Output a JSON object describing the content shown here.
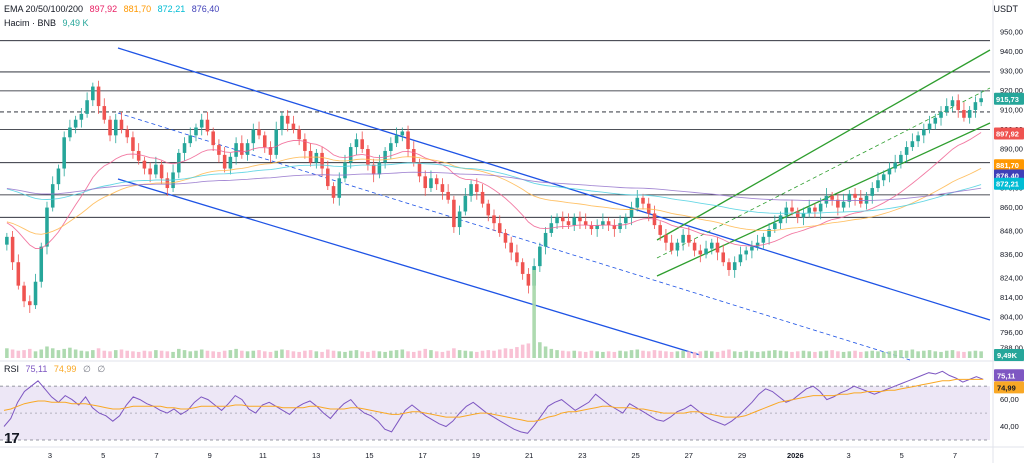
{
  "header": {
    "currency": "USDT"
  },
  "legend": {
    "ema_label": "EMA 20/50/100/200",
    "ema20": "897,92",
    "ema50": "881,70",
    "ema100": "872,21",
    "ema200": "876,40",
    "volume_label": "Hacim · BNB",
    "volume_value": "9,49 K",
    "rsi_label": "RSI",
    "rsi_value": "75,11",
    "rsi_ma_value": "74,99",
    "rsi_extra_1": "∅",
    "rsi_extra_2": "∅"
  },
  "colors": {
    "up": "#26a69a",
    "down": "#ef5350",
    "channel_blue": "#1e53e5",
    "channel_green": "#2e9e2e",
    "rsi": "#7e57c2",
    "rsi_ma": "#f9a825",
    "rsi_band": "#ede7f6"
  },
  "chart_data": [
    {
      "type": "candlestick",
      "title": "",
      "ylim": [
        786,
        952
      ],
      "y_ticks": [
        950,
        940,
        930,
        920,
        910,
        900,
        890,
        880,
        870,
        860,
        848,
        836,
        824,
        814,
        804,
        796,
        788
      ],
      "x_tick_labels": [
        "3",
        "5",
        "7",
        "9",
        "11",
        "13",
        "15",
        "17",
        "19",
        "21",
        "23",
        "25",
        "27",
        "29",
        "2026",
        "3",
        "5",
        "7"
      ],
      "price_badges": [
        {
          "label": "915,73",
          "value": 915.73,
          "color": "#26a69a"
        },
        {
          "label": "897,92",
          "value": 897.92,
          "color": "#ef5350"
        },
        {
          "label": "881,70",
          "value": 881.7,
          "color": "#ff9800"
        },
        {
          "label": "876,40",
          "value": 876.4,
          "color": "#3f3fb8"
        },
        {
          "label": "872,21",
          "value": 872.21,
          "color": "#00bcd4"
        }
      ],
      "horizontal_levels": [
        945.5,
        929.5,
        919.8,
        900,
        883,
        866.5,
        855
      ],
      "dashed_level": 909,
      "ohlc_close": [
        845,
        832,
        820,
        812,
        810,
        822,
        840,
        860,
        872,
        880,
        896,
        901,
        905,
        908,
        915,
        922,
        912,
        905,
        897,
        905,
        900,
        896,
        889,
        884,
        880,
        877,
        882,
        875,
        870,
        878,
        888,
        893,
        897,
        901,
        905,
        899,
        892,
        887,
        880,
        886,
        893,
        887,
        893,
        900,
        897,
        891,
        887,
        900,
        907,
        903,
        900,
        895,
        889,
        883,
        888,
        880,
        871,
        865,
        875,
        883,
        891,
        895,
        890,
        882,
        877,
        883,
        889,
        893,
        897,
        899,
        890,
        883,
        876,
        870,
        875,
        872,
        868,
        864,
        850,
        858,
        866,
        872,
        868,
        862,
        856,
        852,
        847,
        842,
        837,
        832,
        826,
        820,
        830,
        840,
        847,
        852,
        855,
        853,
        851,
        855,
        853,
        851,
        849,
        851,
        853,
        851,
        849,
        852,
        855,
        860,
        865,
        862,
        857,
        851,
        846,
        842,
        838,
        842,
        846,
        842,
        838,
        836,
        839,
        842,
        837,
        832,
        828,
        832,
        836,
        838,
        840,
        842,
        845,
        849,
        852,
        856,
        860,
        858,
        855,
        857,
        860,
        858,
        862,
        866,
        864,
        860,
        863,
        867,
        865,
        862,
        866,
        870,
        874,
        877,
        880,
        883,
        887,
        891,
        894,
        897,
        900,
        903,
        906,
        909,
        912,
        915,
        910,
        906,
        910,
        914,
        916
      ],
      "volume": [
        1.6,
        1.4,
        1.2,
        1.3,
        1.5,
        1.1,
        1.4,
        1.9,
        1.6,
        1.3,
        1.5,
        1.7,
        1.4,
        1.2,
        1.1,
        1.3,
        1.6,
        1.2,
        1.1,
        1.3,
        1.4,
        1.2,
        1.1,
        1.0,
        1.2,
        1.1,
        1.3,
        1.2,
        1.1,
        1.0,
        1.5,
        1.3,
        1.1,
        1.2,
        1.4,
        1.2,
        1.1,
        1.0,
        1.2,
        1.3,
        1.5,
        1.2,
        1.1,
        1.2,
        1.3,
        1.1,
        1.0,
        1.2,
        1.4,
        1.3,
        1.1,
        1.0,
        1.2,
        1.3,
        1.1,
        1.0,
        1.4,
        1.2,
        1.1,
        1.0,
        1.2,
        1.3,
        1.1,
        1.0,
        1.2,
        1.1,
        1.0,
        1.2,
        1.3,
        1.4,
        1.1,
        1.0,
        1.2,
        1.5,
        1.3,
        1.1,
        1.0,
        1.2,
        1.6,
        1.3,
        1.2,
        1.1,
        1.0,
        1.2,
        1.3,
        1.2,
        1.4,
        1.6,
        1.5,
        1.8,
        2.2,
        2.4,
        14.5,
        2.6,
        1.9,
        1.5,
        1.3,
        1.2,
        1.1,
        1.2,
        1.1,
        1.0,
        1.2,
        1.1,
        1.0,
        1.1,
        1.0,
        1.2,
        1.1,
        1.3,
        1.4,
        1.2,
        1.1,
        1.3,
        1.2,
        1.1,
        1.0,
        1.1,
        1.2,
        1.1,
        1.0,
        1.1,
        1.2,
        1.1,
        1.0,
        1.2,
        1.4,
        1.1,
        1.0,
        1.2,
        1.1,
        1.0,
        1.1,
        1.2,
        1.3,
        1.2,
        1.1,
        1.0,
        1.1,
        1.2,
        1.1,
        1.0,
        1.1,
        1.2,
        1.3,
        1.1,
        1.0,
        1.1,
        1.2,
        1.0,
        1.1,
        1.2,
        1.1,
        1.0,
        1.1,
        1.2,
        1.3,
        1.2,
        1.4,
        1.1,
        1.2,
        1.3,
        1.1,
        1.0,
        1.2,
        1.3,
        1.1,
        1.0,
        1.1,
        1.2,
        1.1
      ],
      "volume_badge": "9,49K"
    },
    {
      "type": "line",
      "title": "RSI",
      "ylim": [
        30,
        82
      ],
      "y_ticks": [
        80,
        70,
        60,
        40
      ],
      "y_tick_labels": [
        "80,00",
        "",
        "60,00",
        "40,00"
      ],
      "upper_band": 70,
      "lower_band": 30,
      "mid_level": 50,
      "badges": [
        {
          "label": "75,11",
          "value": 75.11,
          "color": "#7e57c2"
        },
        {
          "label": "74,99",
          "value": 74.99,
          "color": "#f9a825"
        }
      ],
      "series": [
        {
          "name": "RSI",
          "values": [
            40,
            46,
            58,
            66,
            70,
            74,
            68,
            62,
            58,
            63,
            60,
            56,
            62,
            54,
            50,
            48,
            44,
            48,
            56,
            62,
            60,
            57,
            55,
            52,
            50,
            53,
            49,
            52,
            58,
            62,
            60,
            56,
            52,
            57,
            63,
            60,
            53,
            50,
            56,
            58,
            55,
            52,
            49,
            54,
            57,
            59,
            55,
            50,
            46,
            52,
            57,
            60,
            54,
            50,
            48,
            44,
            38,
            36,
            44,
            52,
            56,
            52,
            48,
            45,
            42,
            40,
            44,
            50,
            55,
            58,
            54,
            50,
            47,
            44,
            41,
            38,
            36,
            35,
            41,
            48,
            55,
            58,
            60,
            56,
            52,
            55,
            58,
            64,
            60,
            56,
            53,
            50,
            57,
            54,
            51,
            48,
            45,
            44,
            47,
            51,
            53,
            56,
            52,
            48,
            45,
            43,
            41,
            44,
            48,
            53,
            58,
            64,
            68,
            66,
            62,
            58,
            60,
            64,
            68,
            70,
            66,
            60,
            62,
            65,
            67,
            70,
            68,
            66,
            64,
            66,
            68,
            70,
            72,
            74,
            76,
            78,
            80,
            79,
            81,
            78,
            76,
            73,
            75,
            77,
            75.11
          ]
        }
      ],
      "rsi_ma_values": [
        52,
        53,
        55,
        57,
        58,
        59,
        59,
        58,
        58,
        58,
        57,
        57,
        57,
        56,
        55,
        54,
        53,
        53,
        54,
        55,
        55,
        55,
        55,
        55,
        54,
        54,
        53,
        53,
        54,
        55,
        55,
        55,
        55,
        55,
        56,
        56,
        55,
        55,
        55,
        55,
        55,
        54,
        54,
        54,
        54,
        55,
        55,
        54,
        53,
        53,
        53,
        54,
        54,
        53,
        52,
        51,
        50,
        49,
        49,
        50,
        51,
        51,
        50,
        49,
        48,
        47,
        47,
        47,
        48,
        49,
        50,
        50,
        49,
        48,
        47,
        46,
        45,
        44,
        44,
        45,
        47,
        48,
        50,
        51,
        51,
        52,
        53,
        54,
        55,
        55,
        54,
        54,
        54,
        53,
        53,
        52,
        51,
        50,
        50,
        50,
        50,
        51,
        51,
        50,
        49,
        48,
        47,
        47,
        47,
        48,
        50,
        52,
        54,
        56,
        58,
        59,
        60,
        61,
        62,
        63,
        63,
        63,
        63,
        64,
        64,
        65,
        65,
        66,
        66,
        66,
        67,
        67,
        68,
        69,
        70,
        71,
        72,
        73,
        74,
        74,
        75,
        75,
        75,
        75,
        74.99
      ]
    }
  ]
}
